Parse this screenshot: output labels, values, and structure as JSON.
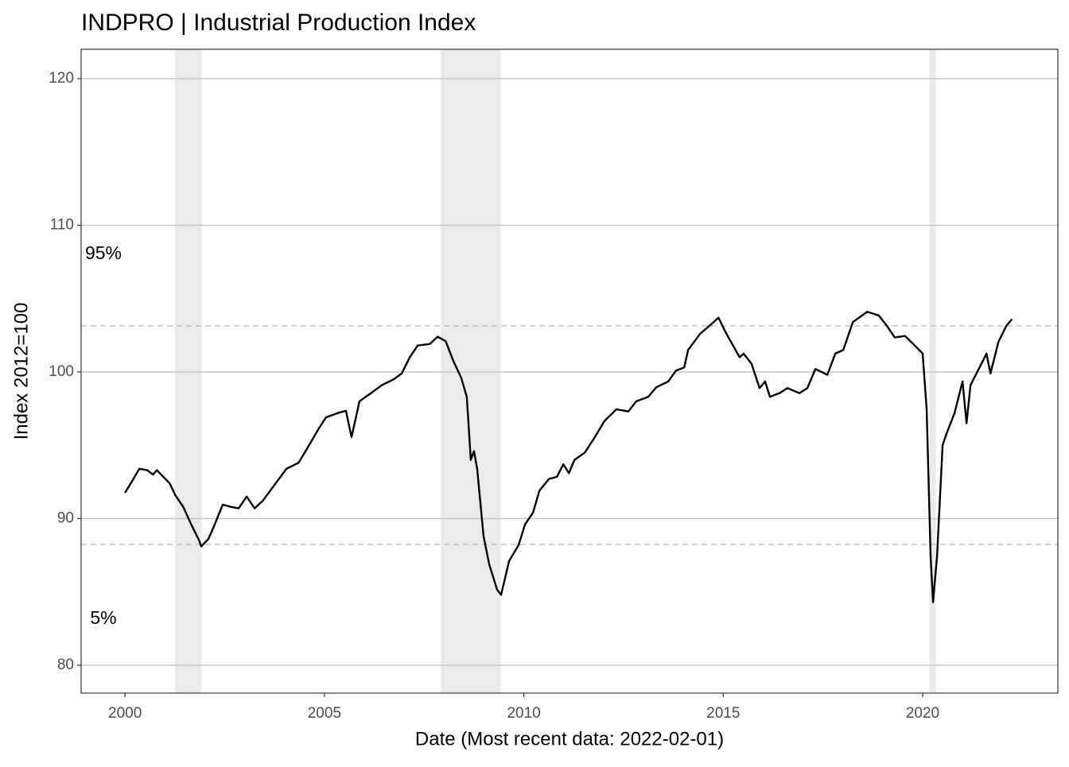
{
  "chart_data": {
    "type": "line",
    "title": "INDPRO | Industrial Production Index",
    "x_label": "Date (Most recent data: 2022-02-01)",
    "y_label": "Index 2012=100",
    "xlim": [
      1998.9,
      2023.39
    ],
    "xticks": [
      2000,
      2005,
      2010,
      2015,
      2020
    ],
    "ylim": [
      78.1,
      122.0
    ],
    "yticks": [
      80,
      90,
      100,
      110,
      120
    ],
    "grid": true,
    "recessions": [
      [
        2001.25,
        2001.92
      ],
      [
        2007.92,
        2009.42
      ],
      [
        2020.17,
        2020.33
      ]
    ],
    "recession_color": "#ebebeb",
    "reference_lines": [
      {
        "value": 103.14,
        "label": "95%",
        "position": "above"
      },
      {
        "value": 88.24,
        "label": "5%",
        "position": "below"
      }
    ],
    "series": [
      {
        "name": "INDPRO",
        "color": "#000000",
        "x": [
          2000.0,
          2000.16,
          2000.36,
          2000.56,
          2000.7,
          2000.8,
          2000.96,
          2001.12,
          2001.26,
          2001.46,
          2001.66,
          2001.86,
          2001.91,
          2002.09,
          2002.25,
          2002.45,
          2002.65,
          2002.85,
          2003.05,
          2003.25,
          2003.45,
          2003.75,
          2004.05,
          2004.35,
          2004.55,
          2004.85,
          2005.04,
          2005.34,
          2005.54,
          2005.68,
          2005.88,
          2006.14,
          2006.44,
          2006.74,
          2006.94,
          2007.14,
          2007.34,
          2007.64,
          2007.84,
          2008.04,
          2008.24,
          2008.43,
          2008.57,
          2008.67,
          2008.75,
          2008.83,
          2008.99,
          2009.13,
          2009.33,
          2009.43,
          2009.63,
          2009.87,
          2010.03,
          2010.23,
          2010.39,
          2010.63,
          2010.83,
          2010.99,
          2011.13,
          2011.27,
          2011.53,
          2011.78,
          2012.02,
          2012.32,
          2012.62,
          2012.82,
          2013.12,
          2013.32,
          2013.62,
          2013.82,
          2014.02,
          2014.12,
          2014.42,
          2014.72,
          2014.88,
          2015.06,
          2015.41,
          2015.51,
          2015.71,
          2015.91,
          2016.05,
          2016.17,
          2016.41,
          2016.61,
          2016.91,
          2017.11,
          2017.31,
          2017.61,
          2017.81,
          2018.01,
          2018.25,
          2018.61,
          2018.9,
          2019.1,
          2019.3,
          2019.56,
          2019.8,
          2020.0,
          2020.1,
          2020.2,
          2020.26,
          2020.36,
          2020.5,
          2020.6,
          2020.8,
          2021.0,
          2021.1,
          2021.2,
          2021.5,
          2021.6,
          2021.7,
          2021.9,
          2022.1,
          2022.24
        ],
        "values": [
          91.76,
          92.47,
          93.4,
          93.3,
          93.0,
          93.3,
          92.85,
          92.4,
          91.6,
          90.8,
          89.6,
          88.5,
          88.1,
          88.6,
          89.6,
          90.95,
          90.8,
          90.7,
          91.5,
          90.7,
          91.2,
          92.3,
          93.4,
          93.8,
          94.7,
          96.1,
          96.9,
          97.2,
          97.35,
          95.55,
          98.0,
          98.5,
          99.1,
          99.5,
          99.9,
          101.0,
          101.8,
          101.9,
          102.4,
          102.1,
          100.7,
          99.6,
          98.3,
          94.0,
          94.6,
          93.4,
          88.8,
          86.9,
          85.15,
          84.8,
          87.1,
          88.2,
          89.6,
          90.4,
          91.9,
          92.7,
          92.85,
          93.7,
          93.1,
          94.0,
          94.5,
          95.55,
          96.65,
          97.45,
          97.3,
          98.0,
          98.3,
          98.95,
          99.35,
          100.1,
          100.3,
          101.5,
          102.6,
          103.3,
          103.7,
          102.7,
          101.0,
          101.25,
          100.55,
          98.9,
          99.35,
          98.3,
          98.55,
          98.9,
          98.55,
          98.9,
          100.2,
          99.8,
          101.25,
          101.5,
          103.4,
          104.1,
          103.85,
          103.15,
          102.35,
          102.45,
          101.8,
          101.25,
          97.45,
          87.4,
          84.3,
          87.4,
          95.0,
          95.8,
          97.2,
          99.35,
          96.5,
          99.1,
          100.7,
          101.25,
          99.9,
          102.05,
          103.15,
          103.6
        ]
      }
    ]
  }
}
